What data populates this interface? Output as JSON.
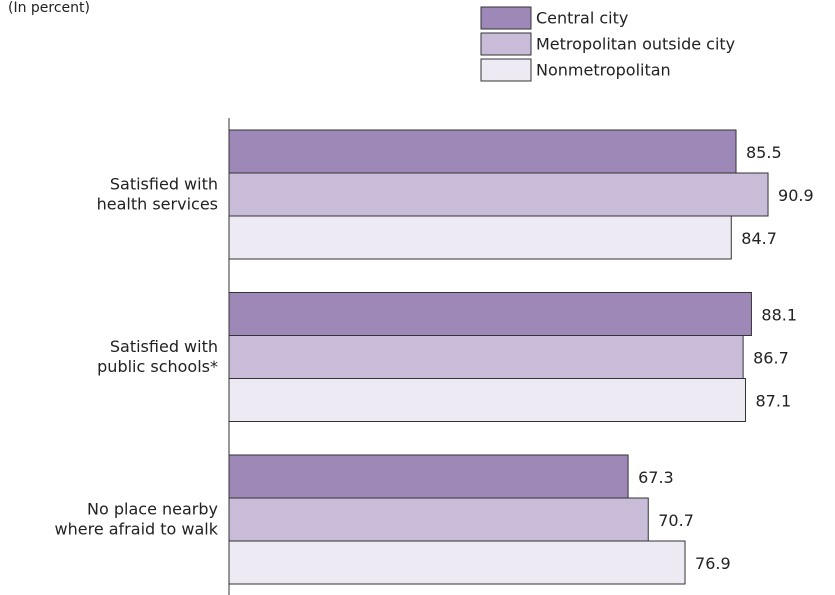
{
  "chart_data": {
    "type": "hbar",
    "subtitle": "(In percent)",
    "categories": [
      [
        "Satisfied with",
        "health services"
      ],
      [
        "Satisfied with",
        "public schools*"
      ],
      [
        "No place nearby",
        "where afraid to walk"
      ]
    ],
    "series": [
      {
        "name": "Central city",
        "color": "#9e88b8",
        "values": [
          85.5,
          88.1,
          67.3
        ]
      },
      {
        "name": "Metropolitan outside city",
        "color": "#c8bcd9",
        "values": [
          90.9,
          86.7,
          70.7
        ]
      },
      {
        "name": "Nonmetropolitan",
        "color": "#eeeaf3",
        "values": [
          84.7,
          87.1,
          76.9
        ]
      }
    ],
    "xlim": [
      0,
      100
    ]
  }
}
